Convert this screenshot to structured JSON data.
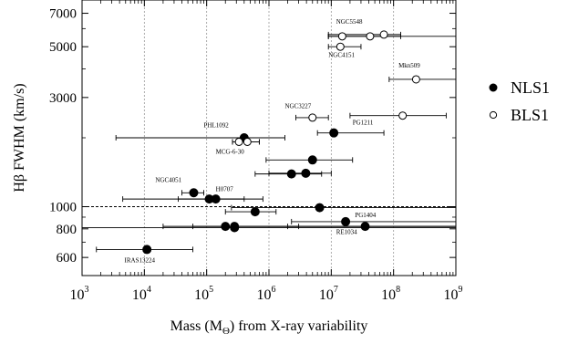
{
  "chart_data": {
    "type": "scatter",
    "xlabel": "Mass (M",
    "xlabel_sub": "Θ",
    "xlabel_tail": ") from X-ray variability",
    "ylabel": "Hβ FWHM (km/s)",
    "x_scale": "log",
    "y_scale": "log",
    "xlim": [
      1000,
      1000000000
    ],
    "ylim": [
      500,
      8000
    ],
    "x_tick_base": "10",
    "x_ticks": [
      {
        "value": 1000,
        "exp": "3"
      },
      {
        "value": 10000,
        "exp": "4"
      },
      {
        "value": 100000,
        "exp": "5"
      },
      {
        "value": 1000000,
        "exp": "6"
      },
      {
        "value": 10000000,
        "exp": "7"
      },
      {
        "value": 100000000,
        "exp": "8"
      },
      {
        "value": 1000000000,
        "exp": "9"
      }
    ],
    "y_ticks": [
      {
        "value": 600,
        "label": "600"
      },
      {
        "value": 800,
        "label": "800"
      },
      {
        "value": 1000,
        "label": "1000"
      },
      {
        "value": 3000,
        "label": "3000"
      },
      {
        "value": 5000,
        "label": "5000"
      },
      {
        "value": 7000,
        "label": "7000"
      }
    ],
    "grid": "vertical dotted at decades",
    "reference_line_y": 1000,
    "legend_position": "right",
    "series": [
      {
        "name": "NLS1",
        "marker": "filled-circle",
        "points": [
          {
            "x": 11000,
            "y": 650,
            "xlo": 1700,
            "xhi": 60000
          },
          {
            "x": 200000,
            "y": 820,
            "xlo": 20000,
            "xhi": 3000000
          },
          {
            "x": 280000,
            "y": 820,
            "xlo": 60000,
            "xhi": 1000000000
          },
          {
            "x": 280000,
            "y": 810,
            "xlo": 1000,
            "xhi": 1000000000
          },
          {
            "x": 17000000,
            "y": 860,
            "xlo": 2300000,
            "xhi": 1000000000
          },
          {
            "x": 35000000,
            "y": 820,
            "xlo": 2000000,
            "xhi": 1000000000
          },
          {
            "x": 600000,
            "y": 950,
            "xlo": 200000,
            "xhi": 1300000
          },
          {
            "x": 6500000,
            "y": 990,
            "xlo": 250000,
            "xhi": 1000000000
          },
          {
            "x": 110000,
            "y": 1080,
            "xlo": 4500,
            "xhi": 800000
          },
          {
            "x": 140000,
            "y": 1080,
            "xlo": 35000,
            "xhi": 400000
          },
          {
            "x": 62000,
            "y": 1150,
            "xlo": 40000,
            "xhi": 90000
          },
          {
            "x": 2300000,
            "y": 1390,
            "xlo": 600000,
            "xhi": 7000000
          },
          {
            "x": 3900000,
            "y": 1400,
            "xlo": 1000000,
            "xhi": 10000000
          },
          {
            "x": 5000000,
            "y": 1600,
            "xlo": 900000,
            "xhi": 22000000
          },
          {
            "x": 400000,
            "y": 2000,
            "xlo": 3500,
            "xhi": 1800000
          },
          {
            "x": 11000000,
            "y": 2100,
            "xlo": 6000000,
            "xhi": 70000000
          }
        ]
      },
      {
        "name": "BLS1",
        "marker": "open-circle",
        "points": [
          {
            "x": 330000,
            "y": 1920,
            "xlo": 260000,
            "xhi": 700000
          },
          {
            "x": 450000,
            "y": 1920,
            "xlo": 260000,
            "xhi": 700000
          },
          {
            "x": 5000000,
            "y": 2450,
            "xlo": 2700000,
            "xhi": 9000000
          },
          {
            "x": 140000000,
            "y": 2500,
            "xlo": 20000000,
            "xhi": 700000000
          },
          {
            "x": 230000000,
            "y": 3600,
            "xlo": 85000000,
            "xhi": 1000000000
          },
          {
            "x": 14000000,
            "y": 5000,
            "xlo": 9000000,
            "xhi": 30000000
          },
          {
            "x": 15000000,
            "y": 5550,
            "xlo": 9000000,
            "xhi": 1000000000
          },
          {
            "x": 42000000,
            "y": 5550,
            "xlo": 9000000,
            "xhi": 130000000
          },
          {
            "x": 70000000,
            "y": 5650,
            "xlo": 9000000,
            "xhi": 130000000
          }
        ]
      }
    ],
    "annotations": [
      {
        "text": "IRAS13224",
        "x": 4800,
        "y": 570
      },
      {
        "text": "RE1034",
        "x": 12000000,
        "y": 760
      },
      {
        "text": "PG1404",
        "x": 24000000,
        "y": 900
      },
      {
        "text": "H0707",
        "x": 140000,
        "y": 1170
      },
      {
        "text": "NGC4051",
        "x": 15000,
        "y": 1280
      },
      {
        "text": "MCG-6-30",
        "x": 140000,
        "y": 1700
      },
      {
        "text": "PHL1092",
        "x": 90000,
        "y": 2220
      },
      {
        "text": "PG1211",
        "x": 22000000,
        "y": 2280
      },
      {
        "text": "NGC3227",
        "x": 1800000,
        "y": 2700
      },
      {
        "text": "Mkn509",
        "x": 120000000,
        "y": 4050
      },
      {
        "text": "NGC4151",
        "x": 9000000,
        "y": 4500
      },
      {
        "text": "NGC5548",
        "x": 12000000,
        "y": 6300
      }
    ]
  }
}
